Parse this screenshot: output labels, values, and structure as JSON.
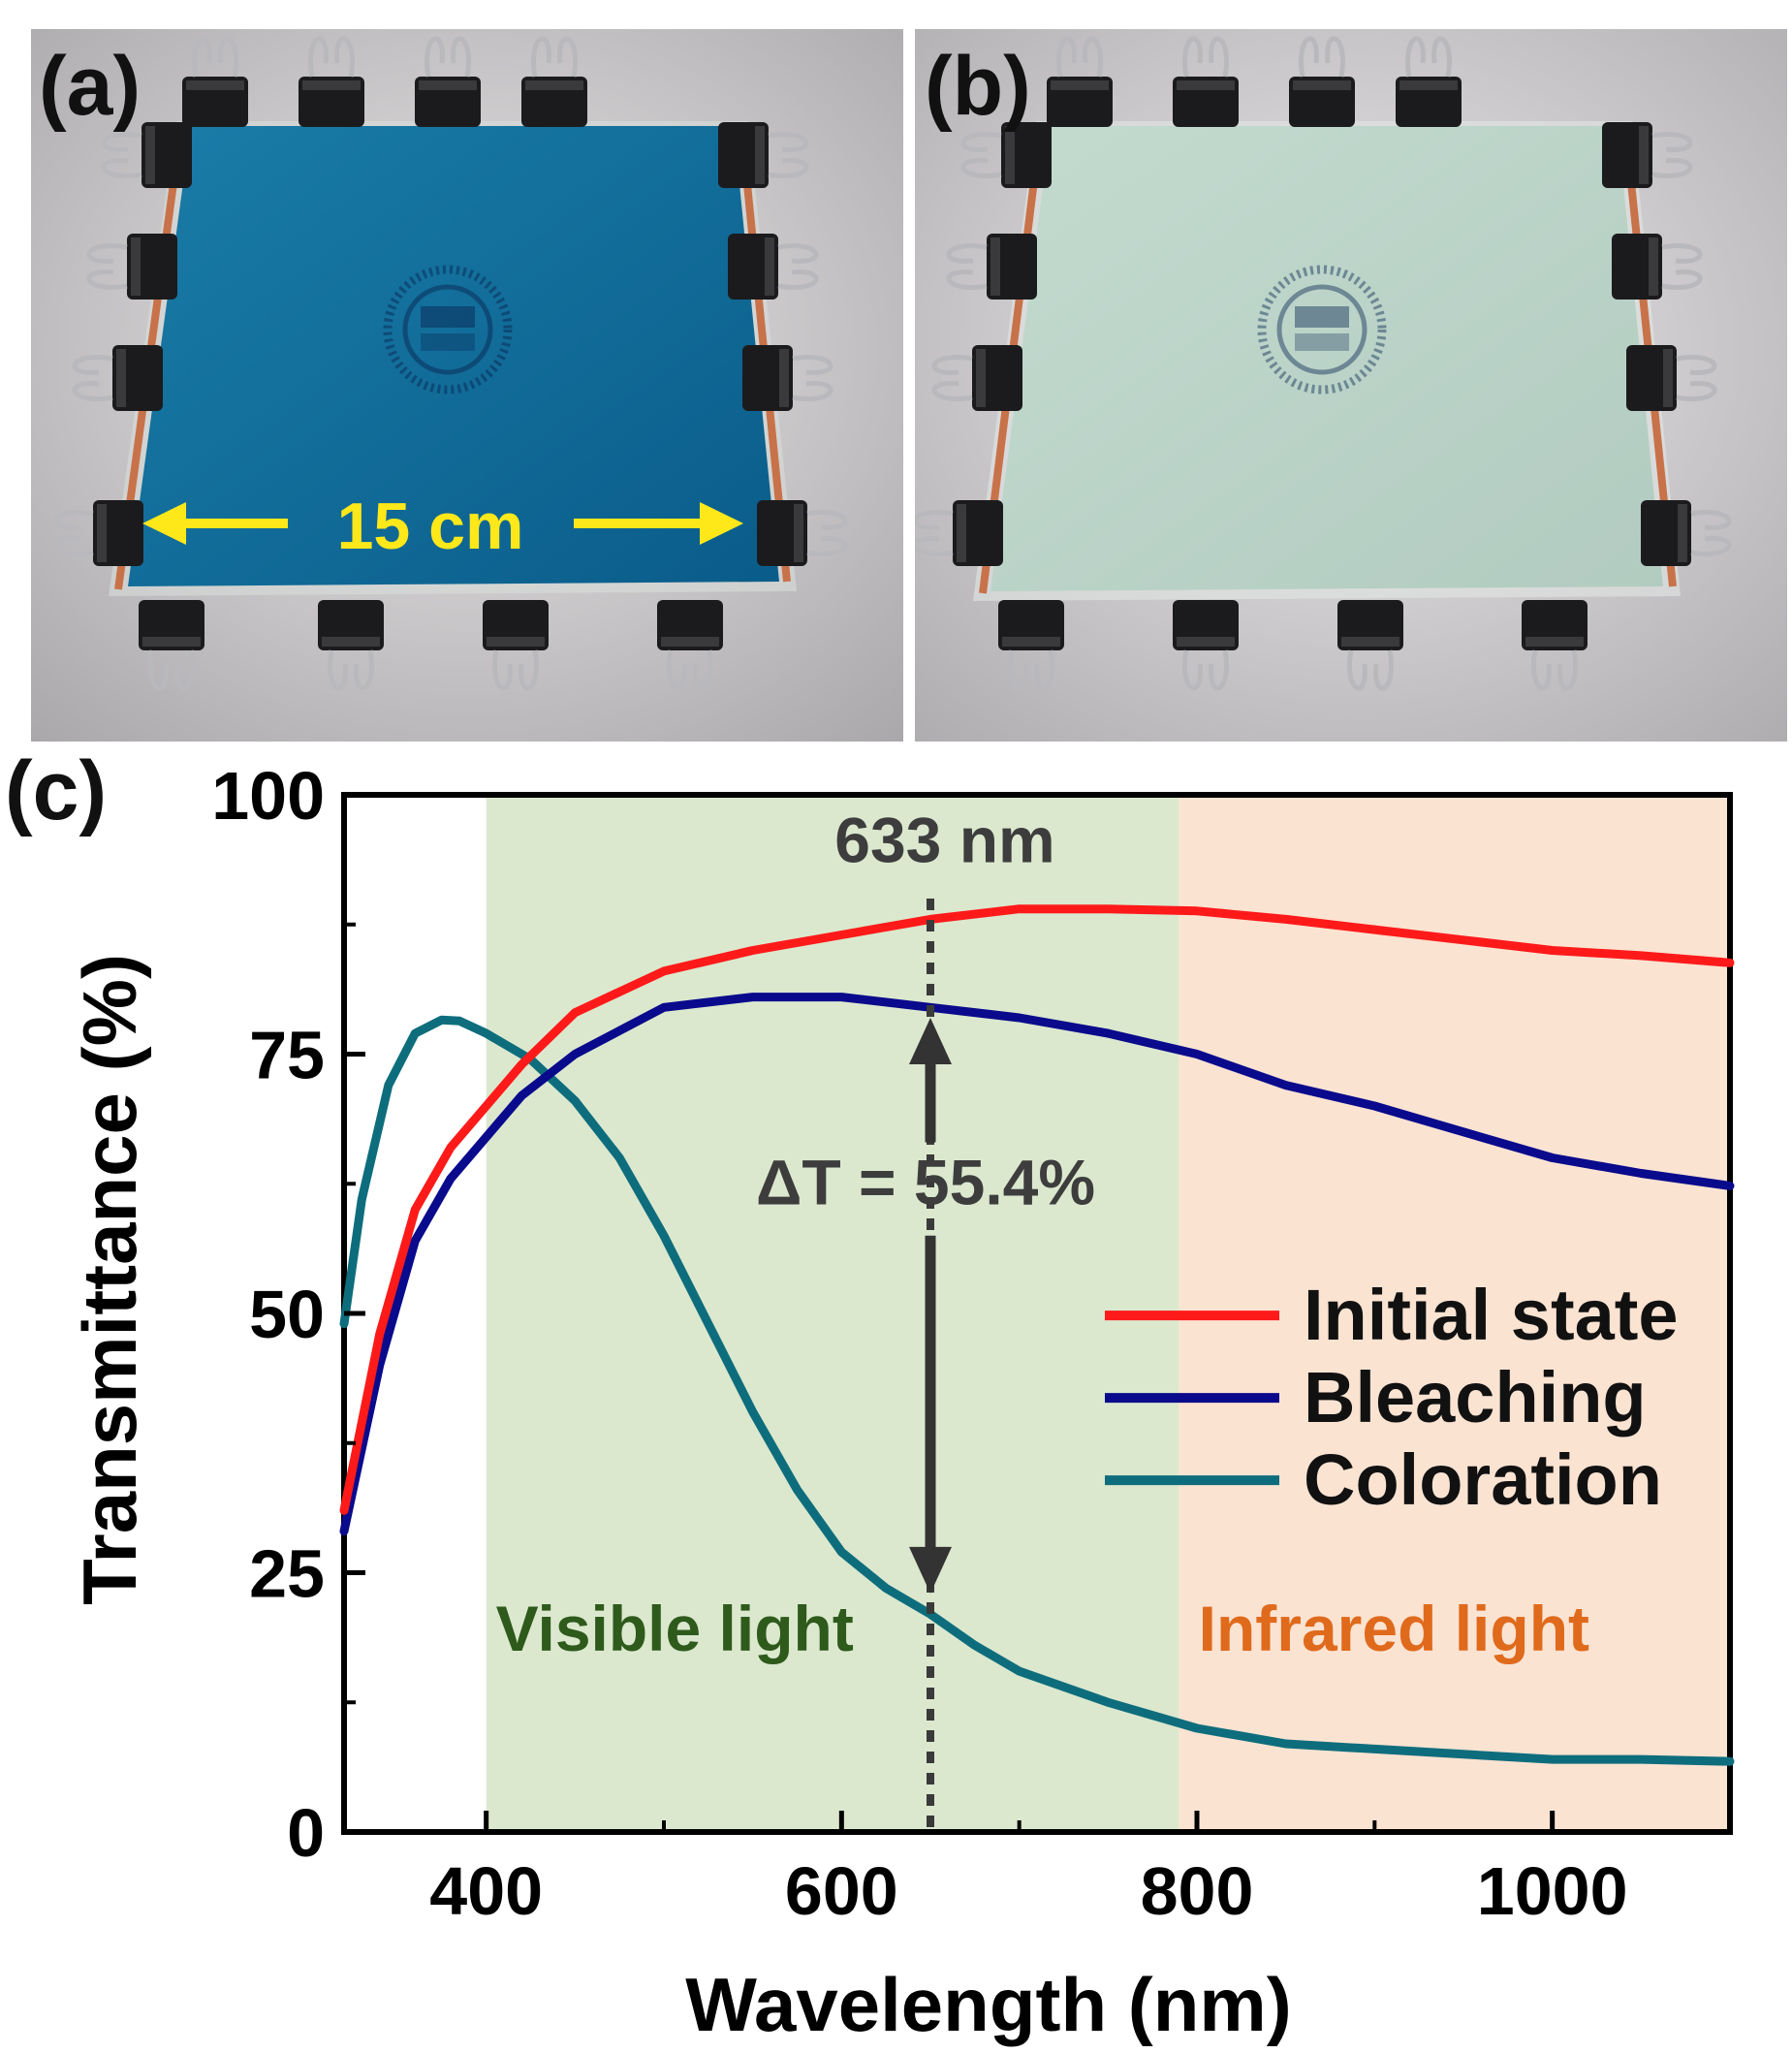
{
  "photos": [
    {
      "label": "(a)",
      "state": "colored",
      "glass_color": "#0e6e9c",
      "dimension_label": "15 cm",
      "dimension_color": "#ffe81a"
    },
    {
      "label": "(b)",
      "state": "bleached",
      "glass_color": "#b9d3c7"
    }
  ],
  "chart_data": {
    "type": "line",
    "panel_label": "(c)",
    "title": "",
    "xlabel": "Wavelength (nm)",
    "ylabel": "Transmittance (%)",
    "xlim": [
      320,
      1100
    ],
    "ylim": [
      0,
      100
    ],
    "xticks": [
      400,
      600,
      800,
      1000
    ],
    "yticks": [
      0,
      25,
      50,
      75,
      100
    ],
    "grid": false,
    "legend_position": "right-middle",
    "regions": [
      {
        "label": "Visible light",
        "x_range": [
          400,
          790
        ],
        "fill": "#dbe8ce",
        "label_color": "#2e5a1c"
      },
      {
        "label": "Infrared light",
        "x_range": [
          790,
          1100
        ],
        "fill": "#fbe3d2",
        "label_color": "#e06a1c"
      }
    ],
    "series": [
      {
        "name": "Initial state",
        "color": "#ff1a1a",
        "x": [
          320,
          340,
          360,
          380,
          400,
          420,
          450,
          500,
          550,
          600,
          650,
          700,
          750,
          800,
          850,
          900,
          950,
          1000,
          1050,
          1100
        ],
        "y": [
          31,
          48,
          60,
          66,
          70,
          74,
          79,
          83,
          85,
          86.5,
          88,
          89,
          89,
          88.8,
          88,
          87,
          86,
          85,
          84.5,
          83.8
        ]
      },
      {
        "name": "Bleaching",
        "color": "#0a0a8c",
        "x": [
          320,
          340,
          360,
          380,
          400,
          420,
          450,
          500,
          550,
          600,
          650,
          700,
          750,
          800,
          850,
          900,
          950,
          1000,
          1050,
          1100
        ],
        "y": [
          29,
          45,
          57,
          63,
          67,
          71,
          75,
          79.5,
          80.5,
          80.5,
          79.5,
          78.5,
          77,
          75,
          72,
          70,
          67.5,
          65,
          63.5,
          62.3
        ]
      },
      {
        "name": "Coloration",
        "color": "#0e6d7c",
        "x": [
          320,
          330,
          345,
          360,
          375,
          385,
          400,
          425,
          450,
          475,
          500,
          525,
          550,
          575,
          600,
          625,
          650,
          675,
          700,
          750,
          800,
          850,
          900,
          950,
          1000,
          1050,
          1100
        ],
        "y": [
          49,
          61,
          72,
          77,
          78.3,
          78.2,
          77,
          74.5,
          70.5,
          65,
          57.5,
          49,
          40.5,
          33,
          27,
          23.5,
          21,
          18,
          15.5,
          12.5,
          10,
          8.5,
          8,
          7.5,
          7,
          7,
          6.8
        ]
      }
    ],
    "annotations": {
      "wavelength_marker": {
        "x": 650,
        "label": "633 nm"
      },
      "delta": {
        "label": "ΔT = 55.4%",
        "from_y": 78.5,
        "to_y": 23
      }
    }
  }
}
